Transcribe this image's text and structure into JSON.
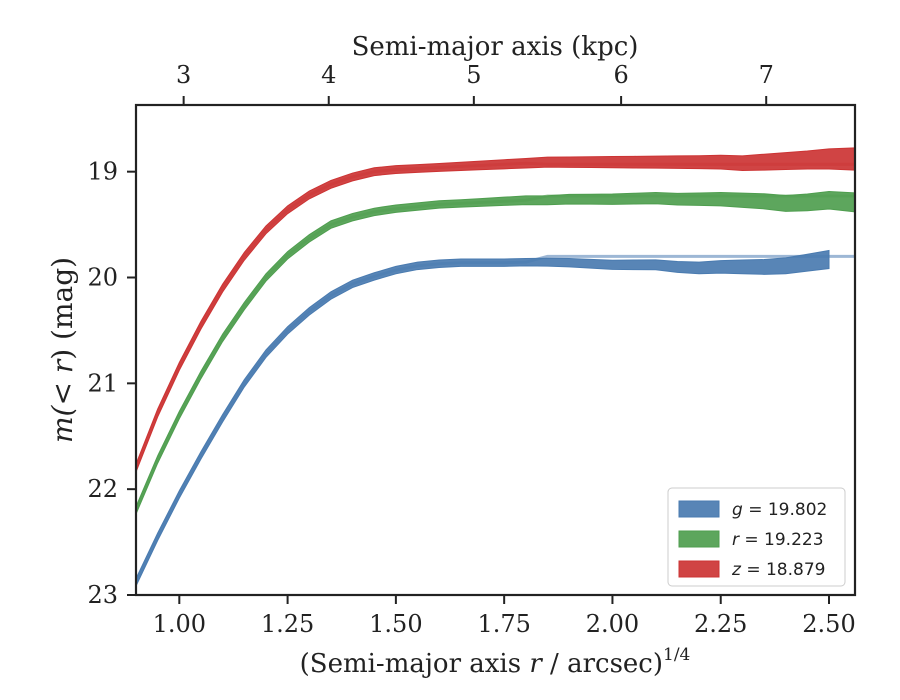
{
  "chart_data": {
    "type": "area",
    "xlabel_main": "(Semi-major axis ",
    "xlabel_var": "r",
    "xlabel_rest": " / arcsec)",
    "xlabel_sup": "1/4",
    "xlabel_top": "Semi-major axis (kpc)",
    "ylabel_pre": "m(",
    "ylabel_mid": "< r",
    "ylabel_post": ") (mag)",
    "xlim": [
      0.9,
      2.56
    ],
    "ylim": [
      23.0,
      18.37
    ],
    "y_inverted": true,
    "grid": false,
    "legend_position": "lower-right",
    "x_ticks": [
      1.0,
      1.25,
      1.5,
      1.75,
      2.0,
      2.25,
      2.5
    ],
    "x_tick_labels": [
      "1.00",
      "1.25",
      "1.50",
      "1.75",
      "2.00",
      "2.25",
      "2.50"
    ],
    "y_ticks": [
      19,
      20,
      21,
      22,
      23
    ],
    "y_tick_labels": [
      "19",
      "20",
      "21",
      "22",
      "23"
    ],
    "top_ticks": [
      3,
      4,
      5,
      6,
      7
    ],
    "top_tick_labels": [
      "3",
      "4",
      "5",
      "6",
      "7"
    ],
    "top_tick_positions_x": [
      1.01,
      1.345,
      1.68,
      2.02,
      2.355
    ],
    "series": [
      {
        "name": "g = 19.802",
        "band": "g",
        "mag": "19.802",
        "color": "#4a7bb0",
        "model_color": "#9db7d5",
        "model_asymptote": 19.8,
        "x": [
          0.9,
          0.95,
          1.0,
          1.05,
          1.1,
          1.15,
          1.2,
          1.25,
          1.3,
          1.35,
          1.4,
          1.45,
          1.5,
          1.55,
          1.6,
          1.65,
          1.7,
          1.75,
          1.8,
          1.85,
          1.9,
          1.95,
          2.0,
          2.05,
          2.1,
          2.15,
          2.2,
          2.25,
          2.3,
          2.35,
          2.4,
          2.45,
          2.5
        ],
        "y": [
          22.88,
          22.45,
          22.05,
          21.68,
          21.33,
          21.0,
          20.72,
          20.5,
          20.32,
          20.17,
          20.06,
          19.99,
          19.93,
          19.89,
          19.87,
          19.86,
          19.86,
          19.86,
          19.855,
          19.855,
          19.86,
          19.87,
          19.88,
          19.88,
          19.88,
          19.9,
          19.91,
          19.9,
          19.9,
          19.9,
          19.89,
          19.86,
          19.83
        ],
        "err": [
          0.01,
          0.01,
          0.01,
          0.01,
          0.01,
          0.01,
          0.01,
          0.01,
          0.01,
          0.01,
          0.01,
          0.01,
          0.01,
          0.01,
          0.01,
          0.01,
          0.01,
          0.01,
          0.01,
          0.012,
          0.014,
          0.016,
          0.018,
          0.02,
          0.022,
          0.026,
          0.03,
          0.034,
          0.04,
          0.045,
          0.05,
          0.055,
          0.06
        ],
        "x_end": 2.5
      },
      {
        "name": "r = 19.223",
        "band": "r",
        "mag": "19.223",
        "color": "#4f9e4f",
        "model_color": "#a9cfa9",
        "model_asymptote": 19.23,
        "x": [
          0.9,
          0.95,
          1.0,
          1.05,
          1.1,
          1.15,
          1.2,
          1.25,
          1.3,
          1.35,
          1.4,
          1.45,
          1.5,
          1.55,
          1.6,
          1.65,
          1.7,
          1.75,
          1.8,
          1.85,
          1.9,
          1.95,
          2.0,
          2.05,
          2.1,
          2.15,
          2.2,
          2.25,
          2.3,
          2.35,
          2.4,
          2.45,
          2.5,
          2.56
        ],
        "y": [
          22.2,
          21.72,
          21.3,
          20.92,
          20.57,
          20.27,
          20.0,
          19.79,
          19.63,
          19.5,
          19.43,
          19.38,
          19.35,
          19.33,
          19.31,
          19.3,
          19.29,
          19.28,
          19.27,
          19.27,
          19.26,
          19.26,
          19.26,
          19.255,
          19.25,
          19.26,
          19.26,
          19.26,
          19.27,
          19.28,
          19.3,
          19.29,
          19.27,
          19.29
        ],
        "err": [
          0.01,
          0.01,
          0.01,
          0.01,
          0.01,
          0.01,
          0.01,
          0.01,
          0.01,
          0.01,
          0.01,
          0.01,
          0.01,
          0.01,
          0.01,
          0.01,
          0.012,
          0.014,
          0.016,
          0.018,
          0.02,
          0.022,
          0.024,
          0.026,
          0.028,
          0.03,
          0.034,
          0.038,
          0.042,
          0.046,
          0.05,
          0.054,
          0.058,
          0.065
        ],
        "x_end": 2.56
      },
      {
        "name": "z = 18.879",
        "band": "z",
        "mag": "18.879",
        "color": "#cc3434",
        "model_color": "#e7a0a0",
        "model_asymptote": 18.93,
        "x": [
          0.9,
          0.95,
          1.0,
          1.05,
          1.1,
          1.15,
          1.2,
          1.25,
          1.3,
          1.35,
          1.4,
          1.45,
          1.5,
          1.55,
          1.6,
          1.65,
          1.7,
          1.75,
          1.8,
          1.85,
          1.9,
          1.95,
          2.0,
          2.05,
          2.1,
          2.15,
          2.2,
          2.25,
          2.3,
          2.35,
          2.4,
          2.45,
          2.5,
          2.56
        ],
        "y": [
          21.8,
          21.28,
          20.84,
          20.45,
          20.1,
          19.8,
          19.55,
          19.36,
          19.22,
          19.12,
          19.05,
          19.0,
          18.98,
          18.97,
          18.96,
          18.95,
          18.94,
          18.93,
          18.92,
          18.91,
          18.91,
          18.91,
          18.91,
          18.91,
          18.91,
          18.91,
          18.91,
          18.91,
          18.92,
          18.91,
          18.9,
          18.89,
          18.88,
          18.88
        ],
        "err": [
          0.012,
          0.012,
          0.012,
          0.012,
          0.012,
          0.012,
          0.012,
          0.012,
          0.012,
          0.012,
          0.012,
          0.012,
          0.012,
          0.012,
          0.012,
          0.014,
          0.016,
          0.018,
          0.02,
          0.022,
          0.024,
          0.026,
          0.028,
          0.03,
          0.032,
          0.034,
          0.036,
          0.04,
          0.044,
          0.05,
          0.055,
          0.06,
          0.07,
          0.08
        ],
        "x_end": 2.56
      }
    ]
  }
}
